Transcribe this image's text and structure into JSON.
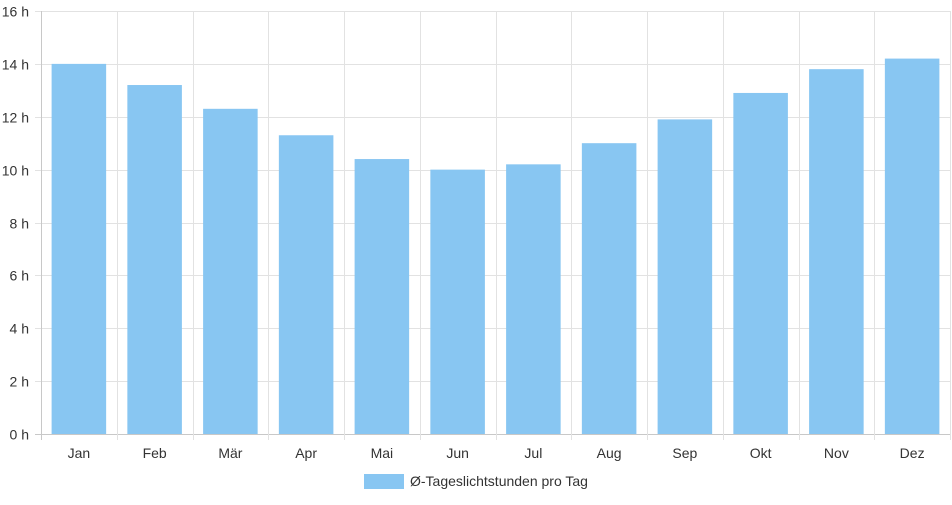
{
  "chart_data": {
    "type": "bar",
    "categories": [
      "Jan",
      "Feb",
      "Mär",
      "Apr",
      "Mai",
      "Jun",
      "Jul",
      "Aug",
      "Sep",
      "Okt",
      "Nov",
      "Dez"
    ],
    "series": [
      {
        "name": "Ø-Tageslichtstunden pro Tag",
        "values": [
          14.0,
          13.2,
          12.3,
          11.3,
          10.4,
          10.0,
          10.2,
          11.0,
          11.9,
          12.9,
          13.8,
          14.2
        ]
      }
    ],
    "ylim": [
      0,
      16
    ],
    "yticks": [
      "0 h",
      "2 h",
      "4 h",
      "6 h",
      "8 h",
      "10 h",
      "12 h",
      "14 h",
      "16 h"
    ],
    "grid": true,
    "legend_position": "bottom",
    "colors": {
      "bar": "#88c6f2",
      "grid": "#e2e2e2",
      "axis": "#c8c8c8"
    }
  }
}
